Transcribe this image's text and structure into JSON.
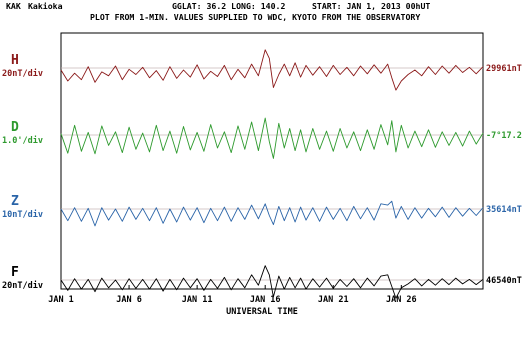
{
  "header": {
    "station_code": "KAK",
    "station_name": "Kakioka",
    "coords": "GGLAT:  36.2 LONG: 140.2",
    "start": "START: JAN  1, 2013  00hUT",
    "subtitle": "PLOT FROM 1-MIN. VALUES SUPPLIED TO WDC, KYOTO FROM THE OBSERVATORY"
  },
  "chart_data": {
    "type": "line",
    "xlabel": "UNIVERSAL TIME",
    "xlim": [
      1,
      32
    ],
    "x_ticks": [
      1,
      6,
      11,
      16,
      21,
      26
    ],
    "x_tick_labels": [
      "JAN  1",
      "JAN  6",
      "JAN 11",
      "JAN 16",
      "JAN 21",
      "JAN 26"
    ],
    "grid": false,
    "panels": [
      {
        "component": "H",
        "scale_label": "20nT/div",
        "baseline_label": "29961nT",
        "color": "#8b1a1a",
        "series": [
          {
            "x": 1,
            "y": -0.3
          },
          {
            "x": 1.5,
            "y": -2.0
          },
          {
            "x": 2,
            "y": -0.8
          },
          {
            "x": 2.5,
            "y": -1.8
          },
          {
            "x": 3,
            "y": 0.2
          },
          {
            "x": 3.5,
            "y": -2.2
          },
          {
            "x": 4,
            "y": -0.6
          },
          {
            "x": 4.5,
            "y": -1.2
          },
          {
            "x": 5,
            "y": 0.3
          },
          {
            "x": 5.5,
            "y": -1.8
          },
          {
            "x": 6,
            "y": -0.2
          },
          {
            "x": 6.5,
            "y": -1.0
          },
          {
            "x": 7,
            "y": 0.1
          },
          {
            "x": 7.5,
            "y": -1.5
          },
          {
            "x": 8,
            "y": -0.4
          },
          {
            "x": 8.5,
            "y": -1.9
          },
          {
            "x": 9,
            "y": 0.2
          },
          {
            "x": 9.5,
            "y": -1.6
          },
          {
            "x": 10,
            "y": -0.3
          },
          {
            "x": 10.5,
            "y": -1.4
          },
          {
            "x": 11,
            "y": 0.5
          },
          {
            "x": 11.5,
            "y": -1.7
          },
          {
            "x": 12,
            "y": -0.5
          },
          {
            "x": 12.5,
            "y": -1.3
          },
          {
            "x": 13,
            "y": 0.4
          },
          {
            "x": 13.5,
            "y": -1.8
          },
          {
            "x": 14,
            "y": -0.2
          },
          {
            "x": 14.5,
            "y": -1.5
          },
          {
            "x": 15,
            "y": 0.6
          },
          {
            "x": 15.5,
            "y": -1.2
          },
          {
            "x": 16,
            "y": 2.8
          },
          {
            "x": 16.3,
            "y": 1.5
          },
          {
            "x": 16.6,
            "y": -3.0
          },
          {
            "x": 17,
            "y": -1.0
          },
          {
            "x": 17.4,
            "y": 0.6
          },
          {
            "x": 17.8,
            "y": -1.2
          },
          {
            "x": 18.2,
            "y": 0.8
          },
          {
            "x": 18.6,
            "y": -1.4
          },
          {
            "x": 19,
            "y": 0.4
          },
          {
            "x": 19.5,
            "y": -1.1
          },
          {
            "x": 20,
            "y": 0.2
          },
          {
            "x": 20.5,
            "y": -1.3
          },
          {
            "x": 21,
            "y": 0.4
          },
          {
            "x": 21.5,
            "y": -1.0
          },
          {
            "x": 22,
            "y": 0.1
          },
          {
            "x": 22.5,
            "y": -1.2
          },
          {
            "x": 23,
            "y": 0.3
          },
          {
            "x": 23.5,
            "y": -0.9
          },
          {
            "x": 24,
            "y": 0.5
          },
          {
            "x": 24.5,
            "y": -0.8
          },
          {
            "x": 25,
            "y": 0.6
          },
          {
            "x": 25.3,
            "y": -1.5
          },
          {
            "x": 25.6,
            "y": -3.4
          },
          {
            "x": 26,
            "y": -2.0
          },
          {
            "x": 26.5,
            "y": -1.0
          },
          {
            "x": 27,
            "y": -0.3
          },
          {
            "x": 27.5,
            "y": -1.2
          },
          {
            "x": 28,
            "y": 0.2
          },
          {
            "x": 28.5,
            "y": -1.0
          },
          {
            "x": 29,
            "y": 0.3
          },
          {
            "x": 29.5,
            "y": -0.8
          },
          {
            "x": 30,
            "y": 0.4
          },
          {
            "x": 30.5,
            "y": -0.7
          },
          {
            "x": 31,
            "y": 0.1
          },
          {
            "x": 31.5,
            "y": -0.9
          },
          {
            "x": 32,
            "y": 0.2
          }
        ]
      },
      {
        "component": "D",
        "scale_label": "1.0'/div",
        "baseline_label": "-7°17.2",
        "color": "#2e9a2e",
        "series": [
          {
            "x": 1,
            "y": 0.2
          },
          {
            "x": 1.5,
            "y": -2.8
          },
          {
            "x": 2,
            "y": 1.5
          },
          {
            "x": 2.5,
            "y": -2.5
          },
          {
            "x": 3,
            "y": 0.4
          },
          {
            "x": 3.5,
            "y": -2.9
          },
          {
            "x": 4,
            "y": 1.4
          },
          {
            "x": 4.5,
            "y": -1.6
          },
          {
            "x": 5,
            "y": 0.5
          },
          {
            "x": 5.5,
            "y": -2.7
          },
          {
            "x": 6,
            "y": 1.2
          },
          {
            "x": 6.5,
            "y": -2.2
          },
          {
            "x": 7,
            "y": 0.3
          },
          {
            "x": 7.5,
            "y": -2.6
          },
          {
            "x": 8,
            "y": 1.5
          },
          {
            "x": 8.5,
            "y": -2.4
          },
          {
            "x": 9,
            "y": 0.6
          },
          {
            "x": 9.5,
            "y": -2.8
          },
          {
            "x": 10,
            "y": 1.3
          },
          {
            "x": 10.5,
            "y": -2.3
          },
          {
            "x": 11,
            "y": 0.4
          },
          {
            "x": 11.5,
            "y": -2.5
          },
          {
            "x": 12,
            "y": 1.6
          },
          {
            "x": 12.5,
            "y": -2.0
          },
          {
            "x": 13,
            "y": 0.5
          },
          {
            "x": 13.5,
            "y": -2.7
          },
          {
            "x": 14,
            "y": 1.4
          },
          {
            "x": 14.5,
            "y": -2.2
          },
          {
            "x": 15,
            "y": 2.0
          },
          {
            "x": 15.5,
            "y": -2.4
          },
          {
            "x": 16,
            "y": 2.6
          },
          {
            "x": 16.3,
            "y": -1.0
          },
          {
            "x": 16.6,
            "y": -3.6
          },
          {
            "x": 17,
            "y": 1.8
          },
          {
            "x": 17.4,
            "y": -2.0
          },
          {
            "x": 17.8,
            "y": 1.0
          },
          {
            "x": 18.2,
            "y": -2.4
          },
          {
            "x": 18.6,
            "y": 0.8
          },
          {
            "x": 19,
            "y": -2.6
          },
          {
            "x": 19.5,
            "y": 1.0
          },
          {
            "x": 20,
            "y": -2.2
          },
          {
            "x": 20.5,
            "y": 0.6
          },
          {
            "x": 21,
            "y": -2.5
          },
          {
            "x": 21.5,
            "y": 1.0
          },
          {
            "x": 22,
            "y": -2.0
          },
          {
            "x": 22.5,
            "y": 0.5
          },
          {
            "x": 23,
            "y": -2.4
          },
          {
            "x": 23.5,
            "y": 0.8
          },
          {
            "x": 24,
            "y": -2.2
          },
          {
            "x": 24.5,
            "y": 1.6
          },
          {
            "x": 25,
            "y": -1.5
          },
          {
            "x": 25.3,
            "y": 2.2
          },
          {
            "x": 25.6,
            "y": -2.6
          },
          {
            "x": 26,
            "y": 1.5
          },
          {
            "x": 26.5,
            "y": -2.0
          },
          {
            "x": 27,
            "y": 0.6
          },
          {
            "x": 27.5,
            "y": -1.8
          },
          {
            "x": 28,
            "y": 0.8
          },
          {
            "x": 28.5,
            "y": -1.9
          },
          {
            "x": 29,
            "y": 0.5
          },
          {
            "x": 29.5,
            "y": -1.6
          },
          {
            "x": 30,
            "y": 0.4
          },
          {
            "x": 30.5,
            "y": -1.7
          },
          {
            "x": 31,
            "y": 0.6
          },
          {
            "x": 31.5,
            "y": -1.4
          },
          {
            "x": 32,
            "y": 0.3
          }
        ]
      },
      {
        "component": "Z",
        "scale_label": "10nT/div",
        "baseline_label": "35614nT",
        "color": "#2a64a8",
        "series": [
          {
            "x": 1,
            "y": 0.0
          },
          {
            "x": 1.5,
            "y": -1.8
          },
          {
            "x": 2,
            "y": 0.2
          },
          {
            "x": 2.5,
            "y": -1.9
          },
          {
            "x": 3,
            "y": 0.1
          },
          {
            "x": 3.5,
            "y": -2.6
          },
          {
            "x": 4,
            "y": 0.2
          },
          {
            "x": 4.5,
            "y": -1.7
          },
          {
            "x": 5,
            "y": 0.0
          },
          {
            "x": 5.5,
            "y": -1.9
          },
          {
            "x": 6,
            "y": 0.3
          },
          {
            "x": 6.5,
            "y": -1.6
          },
          {
            "x": 7,
            "y": 0.1
          },
          {
            "x": 7.5,
            "y": -1.8
          },
          {
            "x": 8,
            "y": 0.2
          },
          {
            "x": 8.5,
            "y": -2.2
          },
          {
            "x": 9,
            "y": 0.0
          },
          {
            "x": 9.5,
            "y": -2.0
          },
          {
            "x": 10,
            "y": 0.3
          },
          {
            "x": 10.5,
            "y": -1.7
          },
          {
            "x": 11,
            "y": 0.2
          },
          {
            "x": 11.5,
            "y": -2.1
          },
          {
            "x": 12,
            "y": 0.1
          },
          {
            "x": 12.5,
            "y": -1.8
          },
          {
            "x": 13,
            "y": 0.3
          },
          {
            "x": 13.5,
            "y": -1.9
          },
          {
            "x": 14,
            "y": 0.2
          },
          {
            "x": 14.5,
            "y": -1.6
          },
          {
            "x": 15,
            "y": 0.6
          },
          {
            "x": 15.5,
            "y": -1.5
          },
          {
            "x": 16,
            "y": 0.8
          },
          {
            "x": 16.3,
            "y": -1.0
          },
          {
            "x": 16.6,
            "y": -2.4
          },
          {
            "x": 17,
            "y": 0.4
          },
          {
            "x": 17.4,
            "y": -1.8
          },
          {
            "x": 17.8,
            "y": 0.2
          },
          {
            "x": 18.2,
            "y": -2.0
          },
          {
            "x": 18.6,
            "y": 0.3
          },
          {
            "x": 19,
            "y": -1.7
          },
          {
            "x": 19.5,
            "y": 0.2
          },
          {
            "x": 20,
            "y": -1.9
          },
          {
            "x": 20.5,
            "y": 0.3
          },
          {
            "x": 21,
            "y": -1.6
          },
          {
            "x": 21.5,
            "y": 0.1
          },
          {
            "x": 22,
            "y": -1.8
          },
          {
            "x": 22.5,
            "y": 0.4
          },
          {
            "x": 23,
            "y": -1.5
          },
          {
            "x": 23.5,
            "y": 0.2
          },
          {
            "x": 24,
            "y": -1.7
          },
          {
            "x": 24.5,
            "y": 0.8
          },
          {
            "x": 25,
            "y": 0.6
          },
          {
            "x": 25.3,
            "y": 1.2
          },
          {
            "x": 25.6,
            "y": -1.4
          },
          {
            "x": 26,
            "y": 0.4
          },
          {
            "x": 26.5,
            "y": -1.6
          },
          {
            "x": 27,
            "y": 0.2
          },
          {
            "x": 27.5,
            "y": -1.4
          },
          {
            "x": 28,
            "y": 0.1
          },
          {
            "x": 28.5,
            "y": -1.2
          },
          {
            "x": 29,
            "y": 0.3
          },
          {
            "x": 29.5,
            "y": -1.3
          },
          {
            "x": 30,
            "y": 0.2
          },
          {
            "x": 30.5,
            "y": -1.1
          },
          {
            "x": 31,
            "y": 0.1
          },
          {
            "x": 31.5,
            "y": -1.0
          },
          {
            "x": 32,
            "y": 0.2
          }
        ]
      },
      {
        "component": "F",
        "scale_label": "20nT/div",
        "baseline_label": "46540nT",
        "color": "#000000",
        "series": [
          {
            "x": 1,
            "y": 0.0
          },
          {
            "x": 1.5,
            "y": -1.6
          },
          {
            "x": 2,
            "y": 0.2
          },
          {
            "x": 2.5,
            "y": -1.4
          },
          {
            "x": 3,
            "y": 0.1
          },
          {
            "x": 3.5,
            "y": -1.8
          },
          {
            "x": 4,
            "y": 0.3
          },
          {
            "x": 4.5,
            "y": -1.2
          },
          {
            "x": 5,
            "y": 0.0
          },
          {
            "x": 5.5,
            "y": -1.5
          },
          {
            "x": 6,
            "y": 0.2
          },
          {
            "x": 6.5,
            "y": -1.3
          },
          {
            "x": 7,
            "y": 0.1
          },
          {
            "x": 7.5,
            "y": -1.4
          },
          {
            "x": 8,
            "y": 0.2
          },
          {
            "x": 8.5,
            "y": -1.7
          },
          {
            "x": 9,
            "y": 0.1
          },
          {
            "x": 9.5,
            "y": -1.5
          },
          {
            "x": 10,
            "y": 0.3
          },
          {
            "x": 10.5,
            "y": -1.2
          },
          {
            "x": 11,
            "y": 0.2
          },
          {
            "x": 11.5,
            "y": -1.6
          },
          {
            "x": 12,
            "y": 0.1
          },
          {
            "x": 12.5,
            "y": -1.3
          },
          {
            "x": 13,
            "y": 0.4
          },
          {
            "x": 13.5,
            "y": -1.5
          },
          {
            "x": 14,
            "y": 0.2
          },
          {
            "x": 14.5,
            "y": -1.2
          },
          {
            "x": 15,
            "y": 0.8
          },
          {
            "x": 15.5,
            "y": -0.8
          },
          {
            "x": 16,
            "y": 2.2
          },
          {
            "x": 16.3,
            "y": 0.8
          },
          {
            "x": 16.6,
            "y": -2.6
          },
          {
            "x": 17,
            "y": 0.6
          },
          {
            "x": 17.4,
            "y": -1.4
          },
          {
            "x": 17.8,
            "y": 0.4
          },
          {
            "x": 18.2,
            "y": -1.2
          },
          {
            "x": 18.6,
            "y": 0.3
          },
          {
            "x": 19,
            "y": -1.4
          },
          {
            "x": 19.5,
            "y": 0.2
          },
          {
            "x": 20,
            "y": -1.1
          },
          {
            "x": 20.5,
            "y": 0.3
          },
          {
            "x": 21,
            "y": -1.3
          },
          {
            "x": 21.5,
            "y": 0.1
          },
          {
            "x": 22,
            "y": -1.0
          },
          {
            "x": 22.5,
            "y": 0.2
          },
          {
            "x": 23,
            "y": -1.2
          },
          {
            "x": 23.5,
            "y": 0.3
          },
          {
            "x": 24,
            "y": -0.9
          },
          {
            "x": 24.5,
            "y": 0.6
          },
          {
            "x": 25,
            "y": 0.8
          },
          {
            "x": 25.3,
            "y": -1.0
          },
          {
            "x": 25.6,
            "y": -2.8
          },
          {
            "x": 26,
            "y": -1.2
          },
          {
            "x": 26.5,
            "y": -0.6
          },
          {
            "x": 27,
            "y": 0.2
          },
          {
            "x": 27.5,
            "y": -0.9
          },
          {
            "x": 28,
            "y": 0.1
          },
          {
            "x": 28.5,
            "y": -0.8
          },
          {
            "x": 29,
            "y": 0.2
          },
          {
            "x": 29.5,
            "y": -0.7
          },
          {
            "x": 30,
            "y": 0.3
          },
          {
            "x": 30.5,
            "y": -0.6
          },
          {
            "x": 31,
            "y": 0.1
          },
          {
            "x": 31.5,
            "y": -0.7
          },
          {
            "x": 32,
            "y": 0.1
          }
        ]
      }
    ]
  }
}
